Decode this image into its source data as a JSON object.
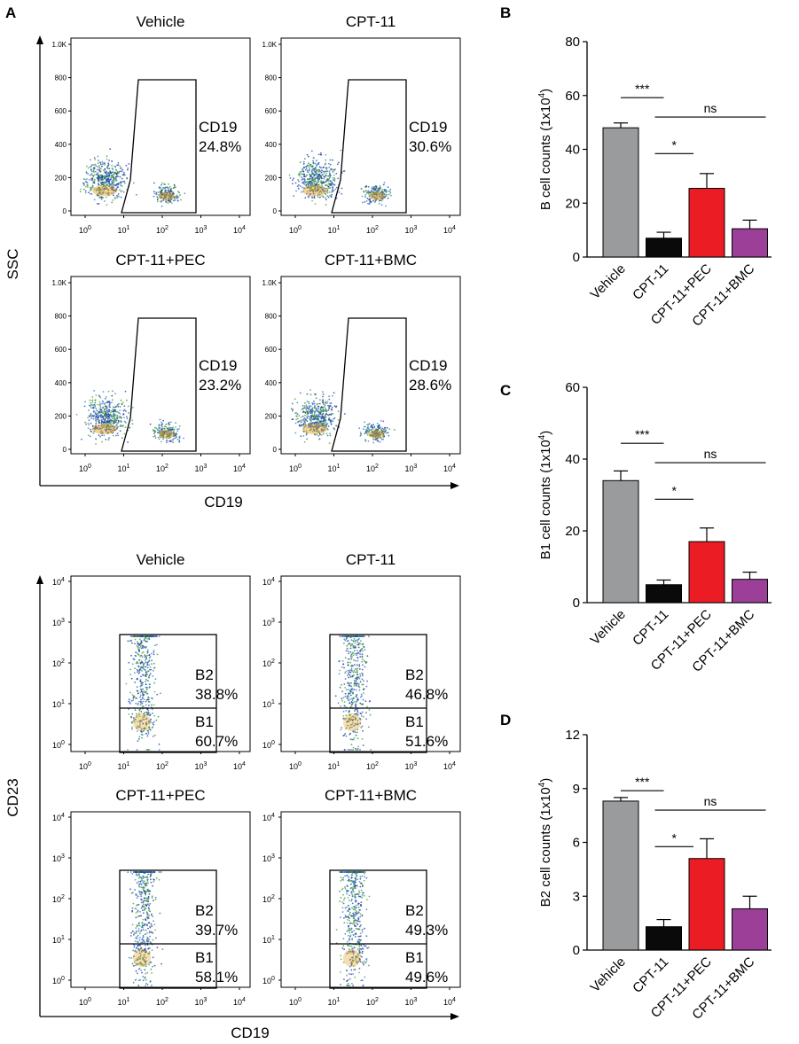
{
  "panel_letters": {
    "a": "A",
    "b": "B",
    "c": "C",
    "d": "D"
  },
  "flow": {
    "cd19": {
      "y_axis_label": "SSC",
      "x_axis_label": "CD19",
      "y_ticks": [
        "1.0K",
        "800",
        "600",
        "400",
        "200",
        "0"
      ],
      "x_tick_base": "10",
      "x_tick_exponents": [
        "0",
        "1",
        "2",
        "3",
        "4"
      ],
      "gate_name": "CD19",
      "plots": [
        {
          "title": "Vehicle",
          "value": "24.8%"
        },
        {
          "title": "CPT-11",
          "value": "30.6%"
        },
        {
          "title": "CPT-11+PEC",
          "value": "23.2%"
        },
        {
          "title": "CPT-11+BMC",
          "value": "28.6%"
        }
      ]
    },
    "cd23": {
      "y_axis_label": "CD23",
      "x_axis_label": "CD19",
      "tick_base": "10",
      "y_tick_exponents": [
        "4",
        "3",
        "2",
        "1",
        "0"
      ],
      "x_tick_exponents": [
        "0",
        "1",
        "2",
        "3",
        "4"
      ],
      "b2_name": "B2",
      "b1_name": "B1",
      "plots": [
        {
          "title": "Vehicle",
          "b2": "38.8%",
          "b1": "60.7%"
        },
        {
          "title": "CPT-11",
          "b2": "46.8%",
          "b1": "51.6%"
        },
        {
          "title": "CPT-11+PEC",
          "b2": "39.7%",
          "b1": "58.1%"
        },
        {
          "title": "CPT-11+BMC",
          "b2": "49.3%",
          "b1": "49.6%"
        }
      ]
    }
  },
  "chart_data": [
    {
      "panel": "B",
      "type": "bar",
      "categories": [
        "Vehicle",
        "CPT-11",
        "CPT-11+PEC",
        "CPT-11+BMC"
      ],
      "values": [
        48,
        7,
        25.5,
        10.5
      ],
      "errors": [
        1.8,
        2.2,
        5.5,
        3.2
      ],
      "colors": [
        "#9a9b9d",
        "#0a0a0a",
        "#ec1c24",
        "#9c3f98"
      ],
      "ylabel_prefix": "B cell counts (1x10",
      "ylabel_exponent": "4",
      "ylabel_suffix": ")",
      "ylim": [
        0,
        80
      ],
      "yticks": [
        0,
        20,
        40,
        60,
        80
      ],
      "significance": [
        {
          "from": 0,
          "to": 1,
          "label": "***"
        },
        {
          "from": 1,
          "to": 3,
          "label": "ns"
        },
        {
          "from": 1,
          "to": 2,
          "label": "*"
        }
      ]
    },
    {
      "panel": "C",
      "type": "bar",
      "categories": [
        "Vehicle",
        "CPT-11",
        "CPT-11+PEC",
        "CPT-11+BMC"
      ],
      "values": [
        34,
        5,
        17,
        6.5
      ],
      "errors": [
        2.7,
        1.3,
        3.8,
        2
      ],
      "colors": [
        "#9a9b9d",
        "#0a0a0a",
        "#ec1c24",
        "#9c3f98"
      ],
      "ylabel_prefix": "B1 cell counts (1x10",
      "ylabel_exponent": "4",
      "ylabel_suffix": ")",
      "ylim": [
        0,
        60
      ],
      "yticks": [
        0,
        20,
        40,
        60
      ],
      "significance": [
        {
          "from": 0,
          "to": 1,
          "label": "***"
        },
        {
          "from": 1,
          "to": 3,
          "label": "ns"
        },
        {
          "from": 1,
          "to": 2,
          "label": "*"
        }
      ]
    },
    {
      "panel": "D",
      "type": "bar",
      "categories": [
        "Vehicle",
        "CPT-11",
        "CPT-11+PEC",
        "CPT-11+BMC"
      ],
      "values": [
        8.3,
        1.3,
        5.1,
        2.3
      ],
      "errors": [
        0.2,
        0.4,
        1.1,
        0.7
      ],
      "colors": [
        "#9a9b9d",
        "#0a0a0a",
        "#ec1c24",
        "#9c3f98"
      ],
      "ylabel_prefix": "B2 cell counts (1x10",
      "ylabel_exponent": "4",
      "ylabel_suffix": ")",
      "ylim": [
        0,
        12
      ],
      "yticks": [
        0,
        3,
        6,
        9,
        12
      ],
      "significance": [
        {
          "from": 0,
          "to": 1,
          "label": "***"
        },
        {
          "from": 1,
          "to": 3,
          "label": "ns"
        },
        {
          "from": 1,
          "to": 2,
          "label": "*"
        }
      ]
    }
  ]
}
